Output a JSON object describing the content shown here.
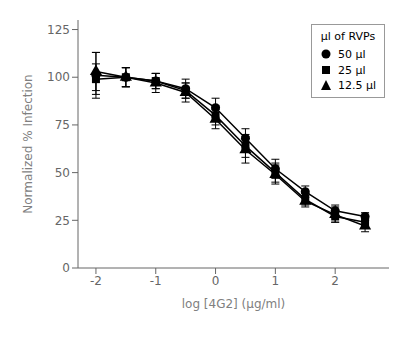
{
  "chart_data": {
    "type": "line",
    "xlabel": "log [4G2] (μg/ml)",
    "ylabel": "Normalized % Infection",
    "xlim": [
      -2.3,
      2.9
    ],
    "xticks": [
      -2,
      -1,
      0,
      1,
      2
    ],
    "ylim": [
      0,
      130
    ],
    "yticks": [
      0,
      25,
      50,
      75,
      100,
      125
    ],
    "legend_title": "μl of RVPs",
    "legend": "upper right",
    "x": [
      -2.0,
      -1.5,
      -1.0,
      -0.5,
      0.0,
      0.5,
      1.0,
      1.5,
      2.0,
      2.5
    ],
    "series": [
      {
        "name": "50 μl",
        "marker": "circle",
        "color": "black",
        "values": [
          101,
          100,
          98,
          94,
          84,
          68,
          52,
          40,
          30,
          27
        ],
        "yerr": [
          12,
          5,
          4,
          5,
          5,
          5,
          5,
          3,
          3,
          2
        ]
      },
      {
        "name": "25 μl",
        "marker": "square",
        "color": "black",
        "values": [
          99,
          100,
          98,
          93,
          80,
          64,
          50,
          36,
          27,
          24
        ],
        "yerr": [
          8,
          5,
          4,
          4,
          5,
          6,
          5,
          3,
          3,
          2
        ]
      },
      {
        "name": "12.5 μl",
        "marker": "triangle",
        "color": "black",
        "values": [
          103,
          100,
          97,
          92,
          78,
          62,
          49,
          35,
          28,
          22
        ],
        "yerr": [
          10,
          5,
          5,
          5,
          5,
          7,
          5,
          3,
          4,
          3
        ]
      }
    ]
  }
}
